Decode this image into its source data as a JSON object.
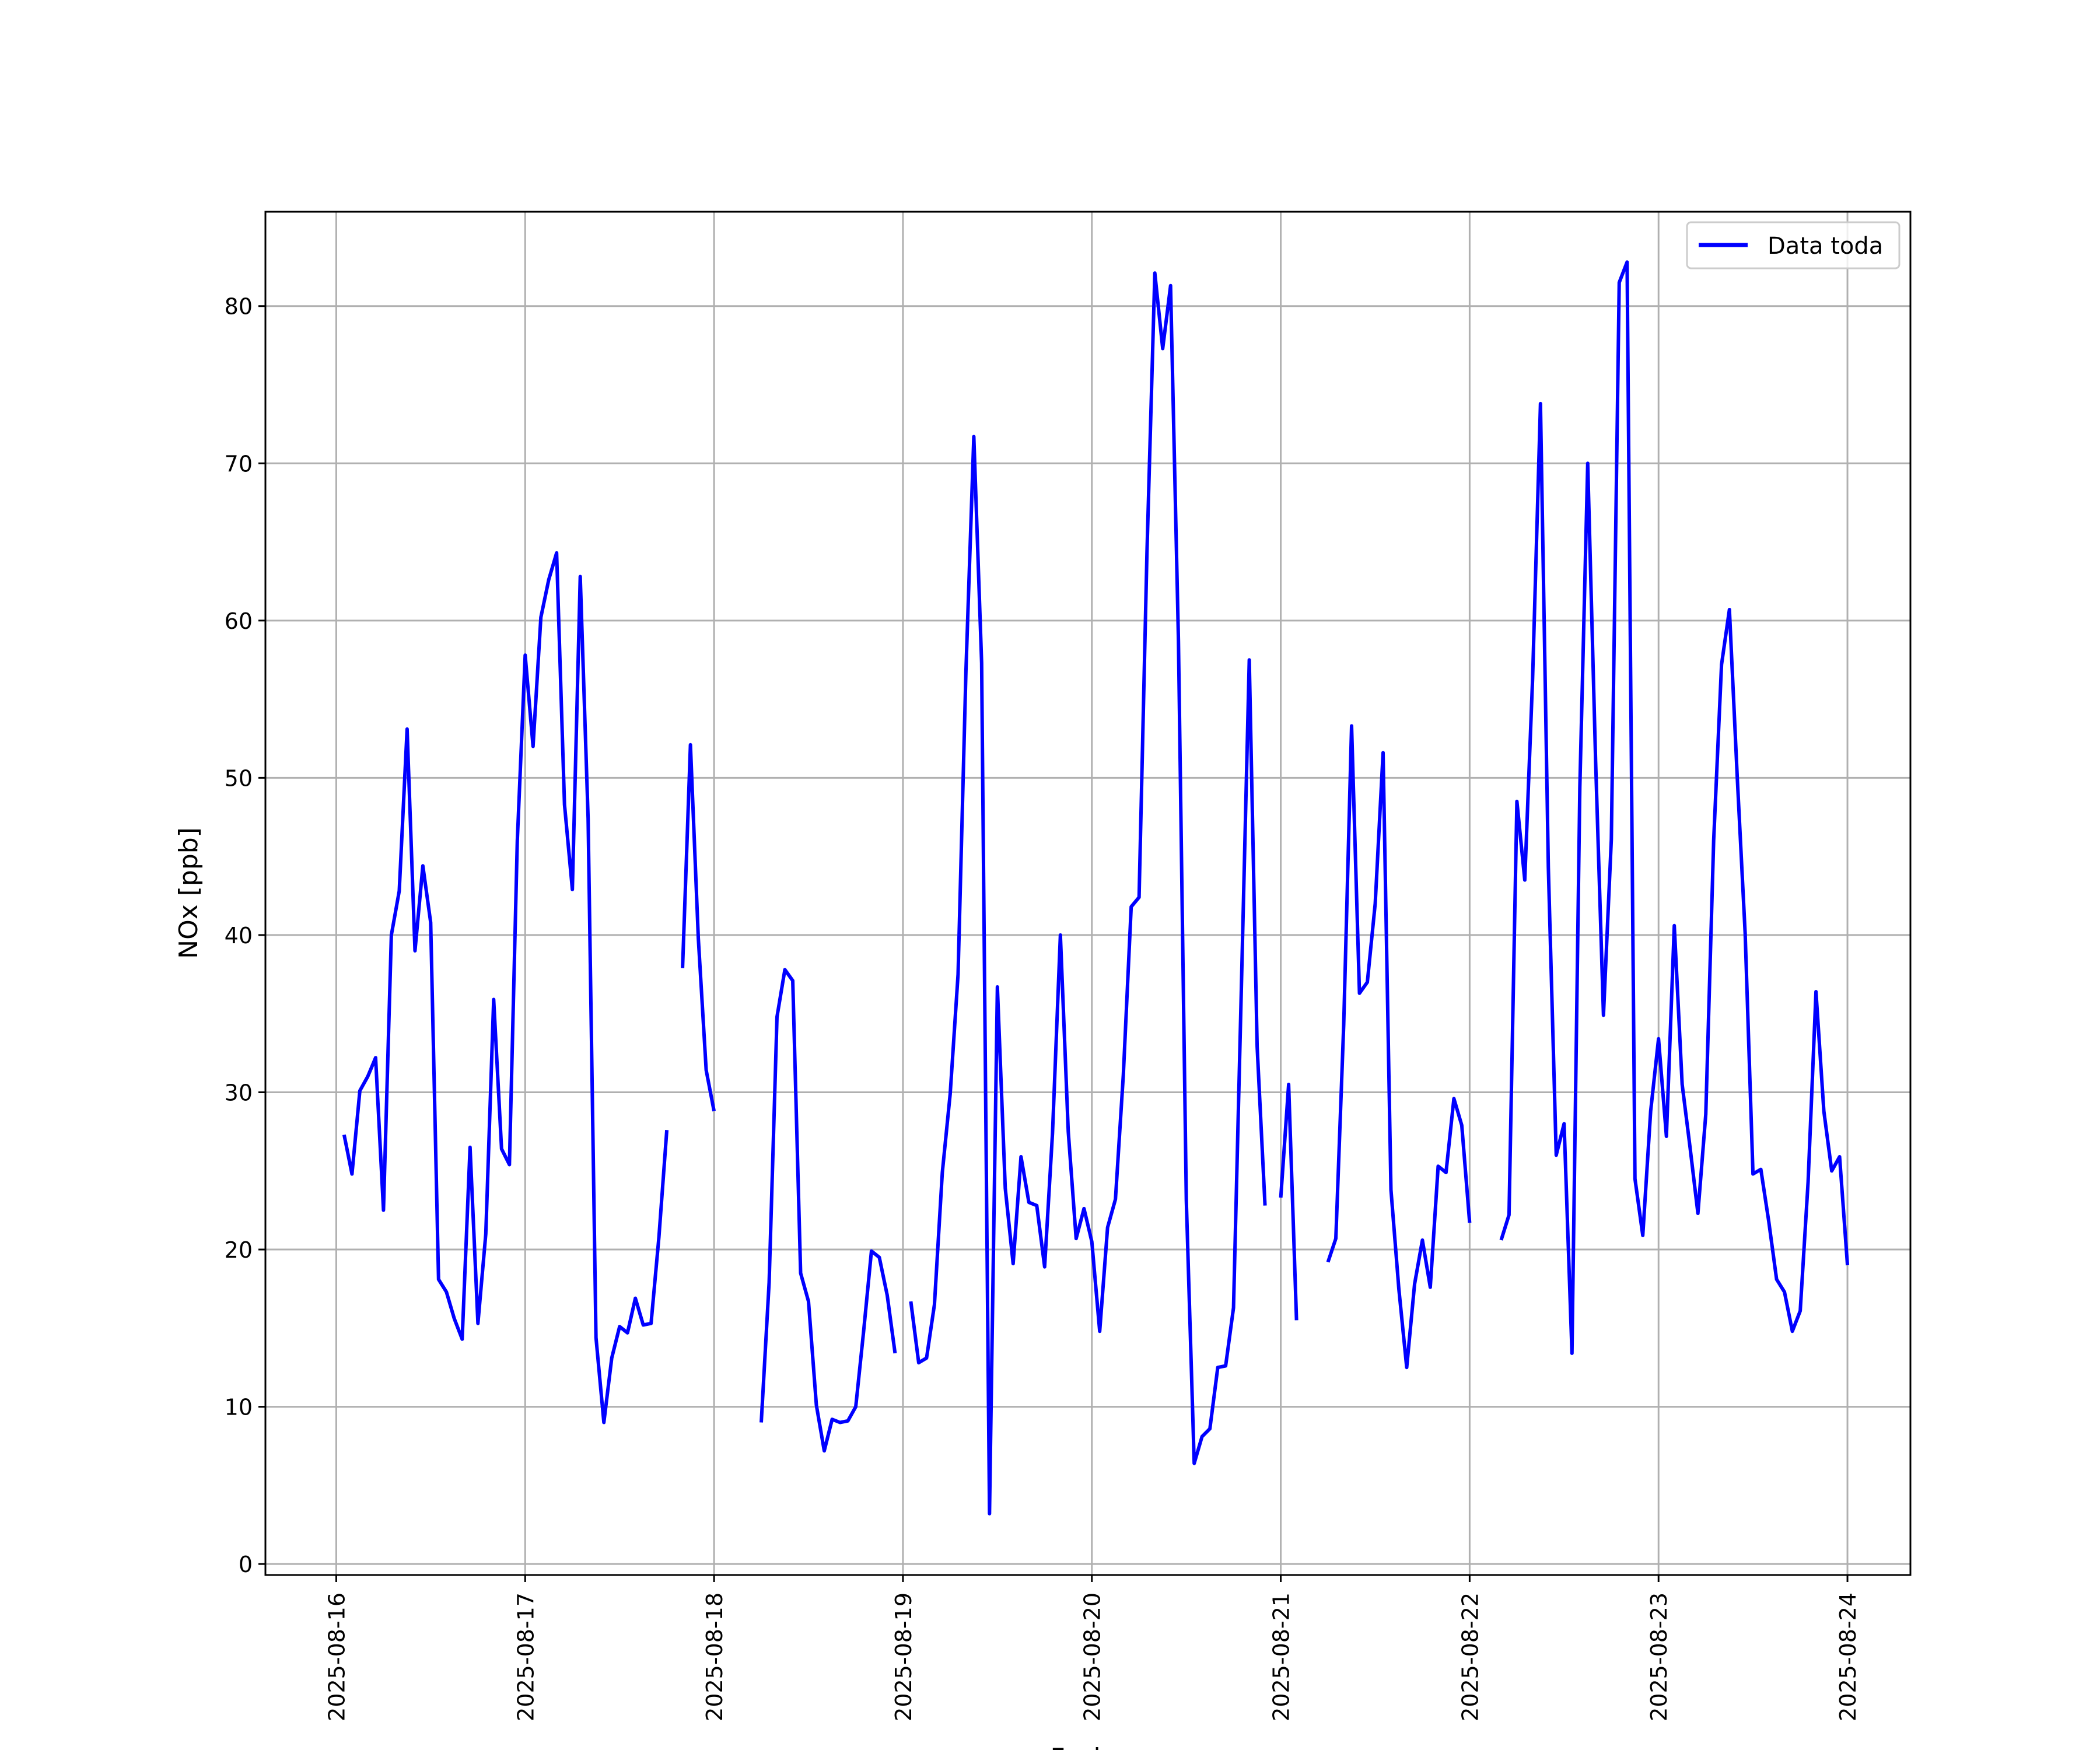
{
  "chart_data": {
    "type": "line",
    "title": "",
    "xlabel": "Fecha",
    "ylabel": "NOx [ppb]",
    "ylim": [
      -0.7,
      86
    ],
    "yticks": [
      0,
      10,
      20,
      30,
      40,
      50,
      60,
      70,
      80
    ],
    "xlim": [
      "2025-08-15T15:00",
      "2025-08-24T08:00"
    ],
    "xticks": [
      "2025-08-16",
      "2025-08-17",
      "2025-08-18",
      "2025-08-19",
      "2025-08-20",
      "2025-08-21",
      "2025-08-22",
      "2025-08-23",
      "2025-08-24"
    ],
    "grid": true,
    "legend": {
      "position": "top-right",
      "entries": [
        "Data toda"
      ]
    },
    "colors": {
      "line": "#0000ff",
      "grid": "#b0b0b0",
      "axes": "#000000"
    },
    "series": [
      {
        "name": "Data toda",
        "x_start": "2025-08-16T01:00",
        "step_hours": 1,
        "values": [
          27.3,
          24.8,
          30.1,
          31.0,
          32.2,
          22.5,
          40.0,
          42.8,
          53.1,
          39.0,
          44.4,
          40.8,
          18.1,
          17.3,
          15.6,
          14.3,
          26.5,
          15.3,
          21.0,
          35.9,
          26.4,
          25.4,
          46.0,
          57.8,
          52.0,
          60.2,
          62.6,
          64.3,
          48.3,
          42.9,
          62.8,
          47.4,
          14.4,
          9.0,
          13.1,
          15.1,
          14.7,
          16.9,
          15.2,
          15.3,
          20.8,
          27.6,
          null,
          37.9,
          52.1,
          39.8,
          31.4,
          28.8,
          null,
          null,
          null,
          null,
          null,
          9.0,
          17.9,
          34.8,
          37.8,
          37.1,
          18.5,
          16.7,
          10.1,
          7.2,
          9.2,
          9.0,
          9.1,
          10.0,
          14.8,
          19.9,
          19.5,
          17.1,
          13.4,
          null,
          16.7,
          12.8,
          13.1,
          16.5,
          24.9,
          29.9,
          37.5,
          56.8,
          71.7,
          57.3,
          3.2,
          36.7,
          23.9,
          19.1,
          25.9,
          23.0,
          22.8,
          18.9,
          27.4,
          40.0,
          27.5,
          20.7,
          22.6,
          20.5,
          14.8,
          21.4,
          23.2,
          31.1,
          41.8,
          42.4,
          64.3,
          82.1,
          77.3,
          81.3,
          58.7,
          23.1,
          6.4,
          8.1,
          8.6,
          12.5,
          12.6,
          16.3,
          36.7,
          57.5,
          32.9,
          22.8,
          null,
          23.3,
          30.5,
          15.5,
          null,
          null,
          null,
          19.2,
          20.7,
          34.3,
          53.3,
          36.3,
          37.0,
          42.0,
          51.6,
          23.8,
          17.5,
          12.5,
          17.8,
          20.6,
          17.6,
          25.3,
          24.9,
          29.6,
          27.9,
          21.7,
          null,
          null,
          null,
          20.6,
          22.2,
          48.5,
          43.5,
          56.3,
          73.8,
          44.3,
          26.0,
          28.0,
          13.4,
          49.4,
          70.0,
          51.1,
          34.9,
          46.1,
          81.5,
          82.8,
          24.5,
          20.9,
          28.8,
          33.4,
          27.2,
          40.6,
          30.5,
          26.5,
          22.3,
          28.6,
          46.0,
          57.2,
          60.7,
          50.0,
          40.1,
          24.8,
          25.1,
          21.8,
          18.1,
          17.3,
          14.8,
          16.1,
          24.3,
          36.4,
          28.8,
          25.0,
          25.9,
          19.0
        ]
      }
    ]
  }
}
